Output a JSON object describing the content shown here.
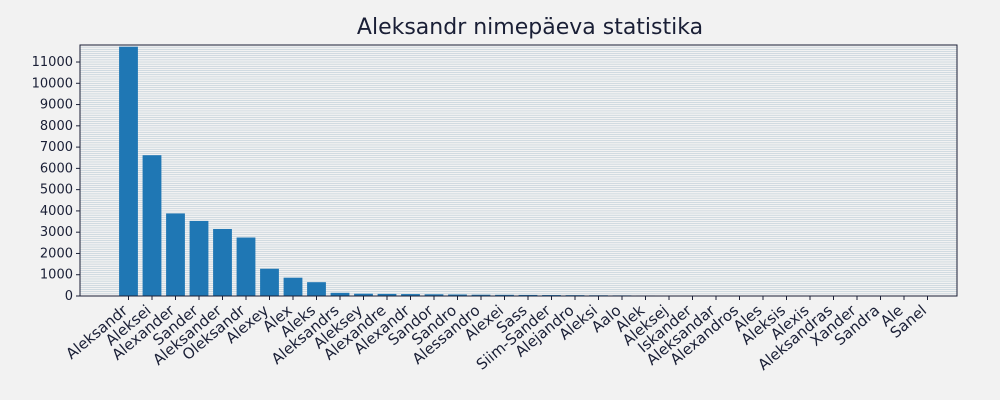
{
  "chart_data": {
    "type": "bar",
    "title": "Aleksandr nimepäeva statistika",
    "xlabel": "",
    "ylabel": "",
    "categories": [
      "Aleksandr",
      "Aleksei",
      "Alexander",
      "Sander",
      "Aleksander",
      "Oleksandr",
      "Alexey",
      "Alex",
      "Aleks",
      "Aleksandrs",
      "Aleksey",
      "Alexandre",
      "Alexandr",
      "Sandor",
      "Sandro",
      "Alessandro",
      "Alexei",
      "Sass",
      "Siim-Sander",
      "Alejandro",
      "Aleksi",
      "Aalo",
      "Alek",
      "Aleksej",
      "Iskander",
      "Aleksandar",
      "Alexandros",
      "Ales",
      "Aleksis",
      "Alexis",
      "Aleksandras",
      "Xander",
      "Sandra",
      "Ale",
      "Sanel"
    ],
    "values": [
      11720,
      6620,
      3880,
      3530,
      3150,
      2750,
      1280,
      860,
      650,
      150,
      110,
      100,
      90,
      80,
      70,
      60,
      55,
      50,
      45,
      40,
      35,
      30,
      25,
      22,
      20,
      18,
      16,
      14,
      12,
      11,
      10,
      9,
      8,
      7,
      6
    ],
    "ylim": [
      0,
      11800
    ],
    "yticks_major": [
      0,
      1000,
      2000,
      3000,
      4000,
      5000,
      6000,
      7000,
      8000,
      9000,
      10000,
      11000
    ],
    "ytick_labels": [
      "0",
      "1000",
      "2000",
      "3000",
      "4000",
      "5000",
      "6000",
      "7000",
      "8000",
      "9000",
      "10000",
      "11000"
    ],
    "ytick_minor_step": 100,
    "grid": true,
    "bar_color": "#1f77b4",
    "grid_color": "#b0c4d0",
    "axis_color": "#1a1f36",
    "background": "#f2f2f2"
  }
}
